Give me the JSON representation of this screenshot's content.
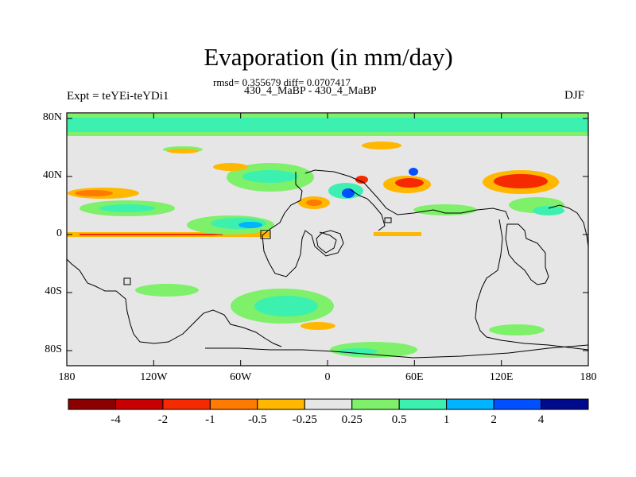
{
  "title": "Evaporation (in mm/day)",
  "stats_line": "rmsd= 0.355679 diff= 0.0707417",
  "runs_line": "430_4_MaBP - 430_4_MaBP",
  "experiment_label": "Expt = teYEi-teYDi1",
  "season_label": "DJF",
  "map": {
    "y_ticks": [
      "80N",
      "40N",
      "0",
      "40S",
      "80S"
    ],
    "x_ticks": [
      "180",
      "120W",
      "60W",
      "0",
      "60E",
      "120E",
      "180"
    ],
    "background_color": "#e6e6e6",
    "coastline_color": "#000000"
  },
  "colorbar": {
    "colors": [
      "#8b0000",
      "#c80000",
      "#f52a00",
      "#ff7a00",
      "#ffb700",
      "#e6e6e6",
      "#7ef06a",
      "#3cf0b0",
      "#00b4ff",
      "#0050ff",
      "#000a8c"
    ],
    "labels": [
      "-4",
      "-2",
      "-1",
      "-0.5",
      "-0.25",
      "0.25",
      "0.5",
      "1",
      "2",
      "4"
    ]
  }
}
